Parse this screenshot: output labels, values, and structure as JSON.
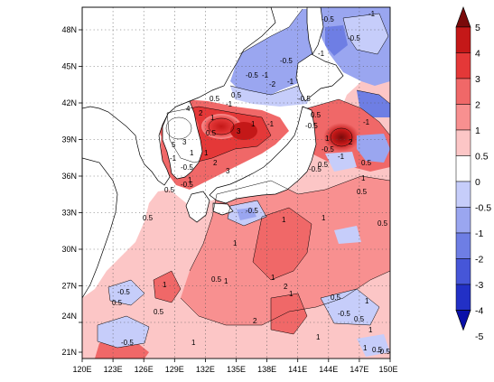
{
  "map": {
    "lon_ticks": [
      "120E",
      "123E",
      "126E",
      "129E",
      "132E",
      "135E",
      "138E",
      "141E",
      "144E",
      "147E",
      "150E"
    ],
    "lat_ticks": [
      "48N",
      "45N",
      "42N",
      "39N",
      "36N",
      "33N",
      "30N",
      "27N",
      "24N",
      "21N"
    ]
  },
  "colorbar": {
    "levels": [
      "5",
      "4",
      "3",
      "2",
      "1",
      "0.5",
      "0",
      "-0.5",
      "-1",
      "-2",
      "-3",
      "-4",
      "-5"
    ],
    "colors": [
      "#7a0a0a",
      "#c41818",
      "#e43838",
      "#f06868",
      "#f89090",
      "#fcc6c6",
      "#ffffff",
      "#c6cdfa",
      "#9aa6f0",
      "#6e7ee4",
      "#4656d8",
      "#2230c6",
      "#0a10a8"
    ]
  },
  "contour_labels": [
    "-0.5",
    "-1",
    "-0.5",
    "-1",
    "-0.5",
    "-1",
    "-0.5",
    "-2",
    "-1",
    "-0.5",
    "0.5",
    "0.5",
    "-1",
    "4",
    "2",
    "1",
    "1",
    "-1",
    "3",
    "5",
    "3",
    "0.5",
    "1",
    "-0.5",
    "-1",
    "1",
    "2",
    "3",
    "1",
    "0.5",
    "-0.5",
    "1",
    "-1",
    "2",
    "-0.5",
    "-1",
    "0.5",
    "0.5",
    "-0.5",
    "1",
    "0.5",
    "0.5",
    "-0.5",
    "0.5",
    "0.5",
    "-0.5",
    "1",
    "1",
    "1",
    "1",
    "1",
    "0.5",
    "2",
    "1",
    "0.5",
    "1",
    "-0.5",
    "0.5",
    "1",
    "-0.5",
    "0.5",
    "-0.5",
    "2",
    "0.5",
    "1",
    "1",
    "1",
    "1",
    "0.5",
    "-0.5"
  ]
}
